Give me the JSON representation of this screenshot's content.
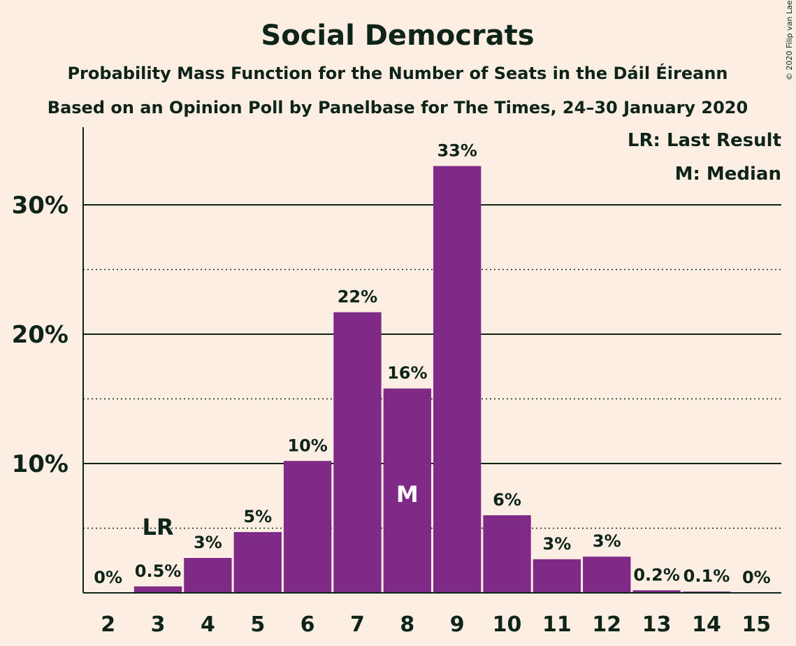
{
  "chart_data": {
    "type": "bar",
    "title": "Social Democrats",
    "subtitle": "Probability Mass Function for the Number of Seats in the Dáil Éireann",
    "subtitle2": "Based on an Opinion Poll by Panelbase for The Times, 24–30 January 2020",
    "copyright": "© 2020 Filip van Laenen",
    "legend": [
      "LR: Last Result",
      "M: Median"
    ],
    "legend_position": "top-right",
    "categories": [
      "2",
      "3",
      "4",
      "5",
      "6",
      "7",
      "8",
      "9",
      "10",
      "11",
      "12",
      "13",
      "14",
      "15"
    ],
    "values": [
      0,
      0.5,
      2.7,
      4.7,
      10.2,
      21.7,
      15.8,
      33.0,
      6.0,
      2.6,
      2.8,
      0.2,
      0.1,
      0
    ],
    "value_labels": [
      "0%",
      "0.5%",
      "3%",
      "5%",
      "10%",
      "22%",
      "16%",
      "33%",
      "6%",
      "3%",
      "3%",
      "0.2%",
      "0.1%",
      "0%"
    ],
    "yticks": [
      10,
      20,
      30
    ],
    "ytick_labels": [
      "10%",
      "20%",
      "30%"
    ],
    "minor_gridlines": [
      5,
      15,
      25
    ],
    "ylim": [
      0,
      36
    ],
    "last_result_category": "3",
    "last_result_label": "LR",
    "median_category": "8",
    "median_label": "M",
    "colors": {
      "bar": "#7F2A87",
      "background": "#FDEEE4",
      "text": "#0F2418",
      "median_text": "#FFFFFF"
    }
  }
}
